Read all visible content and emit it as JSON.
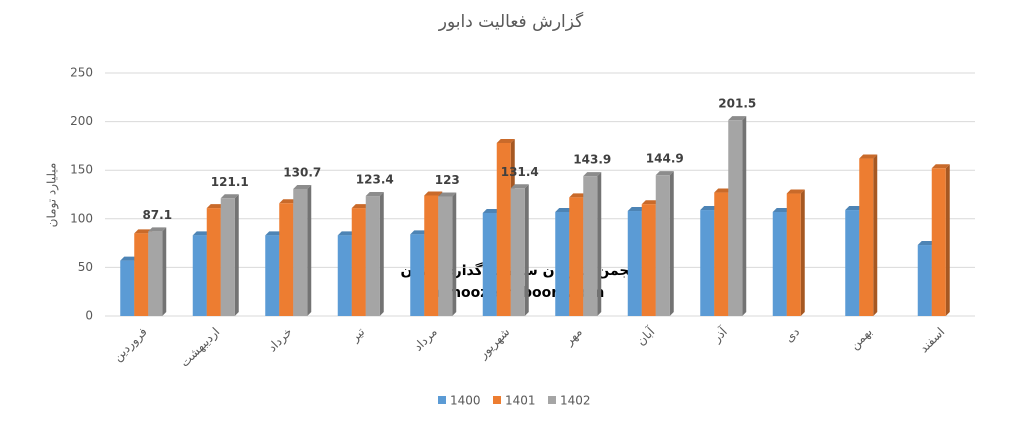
{
  "chart_data": {
    "type": "bar3d",
    "title": "گزارش فعالیت دابور",
    "y_axis_label": "میلیارد تومان",
    "categories": [
      "فروردین",
      "اردیبهشت",
      "خرداد",
      "تیر",
      "مرداد",
      "شهریور",
      "مهر",
      "آبان",
      "آذر",
      "دی",
      "بهمن",
      "اسفند"
    ],
    "series": [
      {
        "name": "1400",
        "color": "#5b9bd5",
        "values": [
          57,
          83,
          83,
          83,
          84,
          106,
          107,
          108,
          109,
          107,
          109,
          73
        ]
      },
      {
        "name": "1401",
        "color": "#ed7d31",
        "values": [
          85,
          111,
          116,
          111,
          124,
          178,
          122,
          115,
          127,
          126,
          162,
          152
        ]
      },
      {
        "name": "1402",
        "color": "#a5a5a5",
        "values": [
          87.1,
          121.1,
          130.7,
          123.4,
          123,
          131.4,
          143.9,
          144.9,
          201.5,
          null,
          null,
          null
        ],
        "show_value_labels": true
      }
    ],
    "ylim": [
      0,
      250
    ],
    "yticks": [
      0,
      50,
      100,
      150,
      200,
      250
    ],
    "grid": true,
    "legend": "bottom",
    "watermark": [
      "انجمن خبرگان سرمایه گذاری ایران",
      "Amoozesh-boors.com"
    ]
  }
}
